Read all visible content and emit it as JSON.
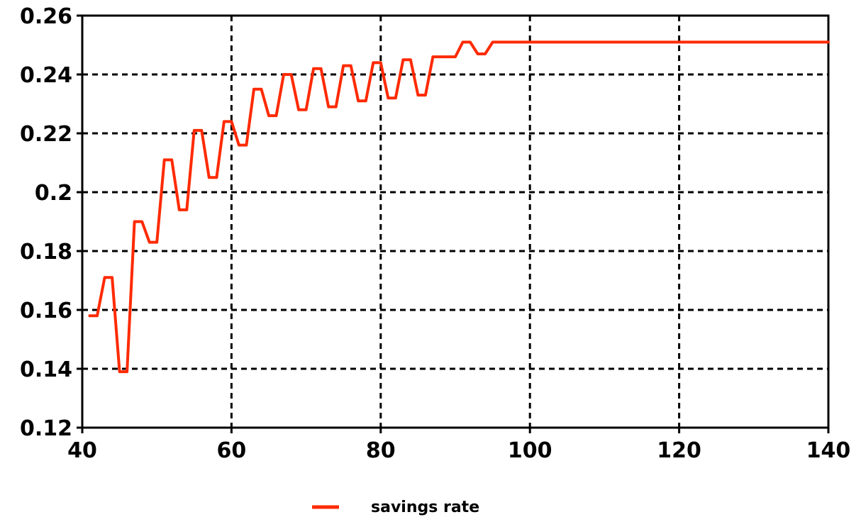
{
  "chart_data": {
    "type": "line",
    "title": "",
    "xlabel": "",
    "ylabel": "",
    "xlim": [
      40,
      140
    ],
    "ylim": [
      0.12,
      0.26
    ],
    "xticks": [
      40,
      60,
      80,
      100,
      120,
      140
    ],
    "yticks": [
      0.12,
      0.14,
      0.16,
      0.18,
      0.2,
      0.22,
      0.24,
      0.26
    ],
    "xtick_labels": [
      "40",
      "60",
      "80",
      "100",
      "120",
      "140"
    ],
    "ytick_labels": [
      "0.12",
      "0.14",
      "0.16",
      "0.18",
      "0.2",
      "0.22",
      "0.24",
      "0.26"
    ],
    "grid": true,
    "legend_position": "bottom-center",
    "series": [
      {
        "name": "savings rate",
        "color": "#ff2a00",
        "x": [
          41,
          42,
          43,
          44,
          45,
          46,
          47,
          48,
          49,
          50,
          51,
          52,
          53,
          54,
          55,
          56,
          57,
          58,
          59,
          60,
          61,
          62,
          63,
          64,
          65,
          66,
          67,
          68,
          69,
          70,
          71,
          72,
          73,
          74,
          75,
          76,
          77,
          78,
          79,
          80,
          81,
          82,
          83,
          84,
          85,
          86,
          87,
          88,
          89,
          90,
          91,
          92,
          93,
          94,
          95,
          96,
          100,
          110,
          120,
          130,
          140
        ],
        "y": [
          0.158,
          0.158,
          0.171,
          0.171,
          0.139,
          0.139,
          0.19,
          0.19,
          0.183,
          0.183,
          0.211,
          0.211,
          0.194,
          0.194,
          0.221,
          0.221,
          0.205,
          0.205,
          0.224,
          0.224,
          0.216,
          0.216,
          0.235,
          0.235,
          0.226,
          0.226,
          0.24,
          0.24,
          0.228,
          0.228,
          0.242,
          0.242,
          0.229,
          0.229,
          0.243,
          0.243,
          0.231,
          0.231,
          0.244,
          0.244,
          0.232,
          0.232,
          0.245,
          0.245,
          0.233,
          0.233,
          0.246,
          0.246,
          0.246,
          0.246,
          0.251,
          0.251,
          0.247,
          0.247,
          0.251,
          0.251,
          0.251,
          0.251,
          0.251,
          0.251,
          0.251
        ]
      }
    ]
  }
}
